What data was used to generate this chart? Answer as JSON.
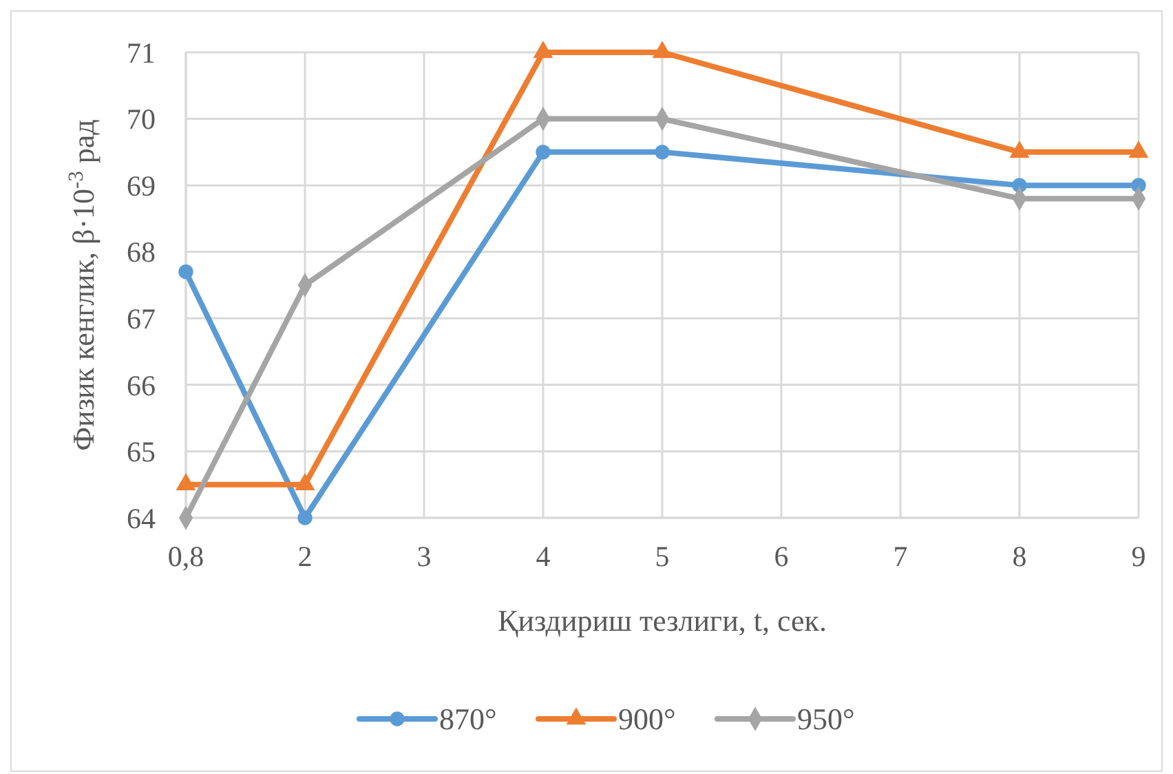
{
  "chart_data": {
    "type": "line",
    "xlabel": "Қиздириш тезлиги, t, сек.",
    "ylabel": "Физик кенглик, β·10$^{-3}$ рад",
    "categories": [
      "0,8",
      "2",
      "3",
      "4",
      "5",
      "6",
      "7",
      "8",
      "9"
    ],
    "ylim": [
      64,
      71
    ],
    "yticks": [
      64,
      65,
      66,
      67,
      68,
      69,
      70,
      71
    ],
    "grid": true,
    "legend": "bottom",
    "line_style": "solid",
    "series": [
      {
        "name": "870°",
        "color": "#5b9bd5",
        "marker": "circle",
        "values": [
          67.7,
          64,
          null,
          69.5,
          69.5,
          null,
          null,
          69,
          69
        ]
      },
      {
        "name": "900°",
        "color": "#ed7d31",
        "marker": "triangle",
        "values": [
          64.5,
          64.5,
          null,
          71,
          71,
          null,
          null,
          69.5,
          69.5
        ]
      },
      {
        "name": "950°",
        "color": "#a5a5a5",
        "marker": "diamond",
        "values": [
          64,
          67.5,
          null,
          70,
          70,
          null,
          null,
          68.8,
          68.8
        ]
      }
    ]
  }
}
